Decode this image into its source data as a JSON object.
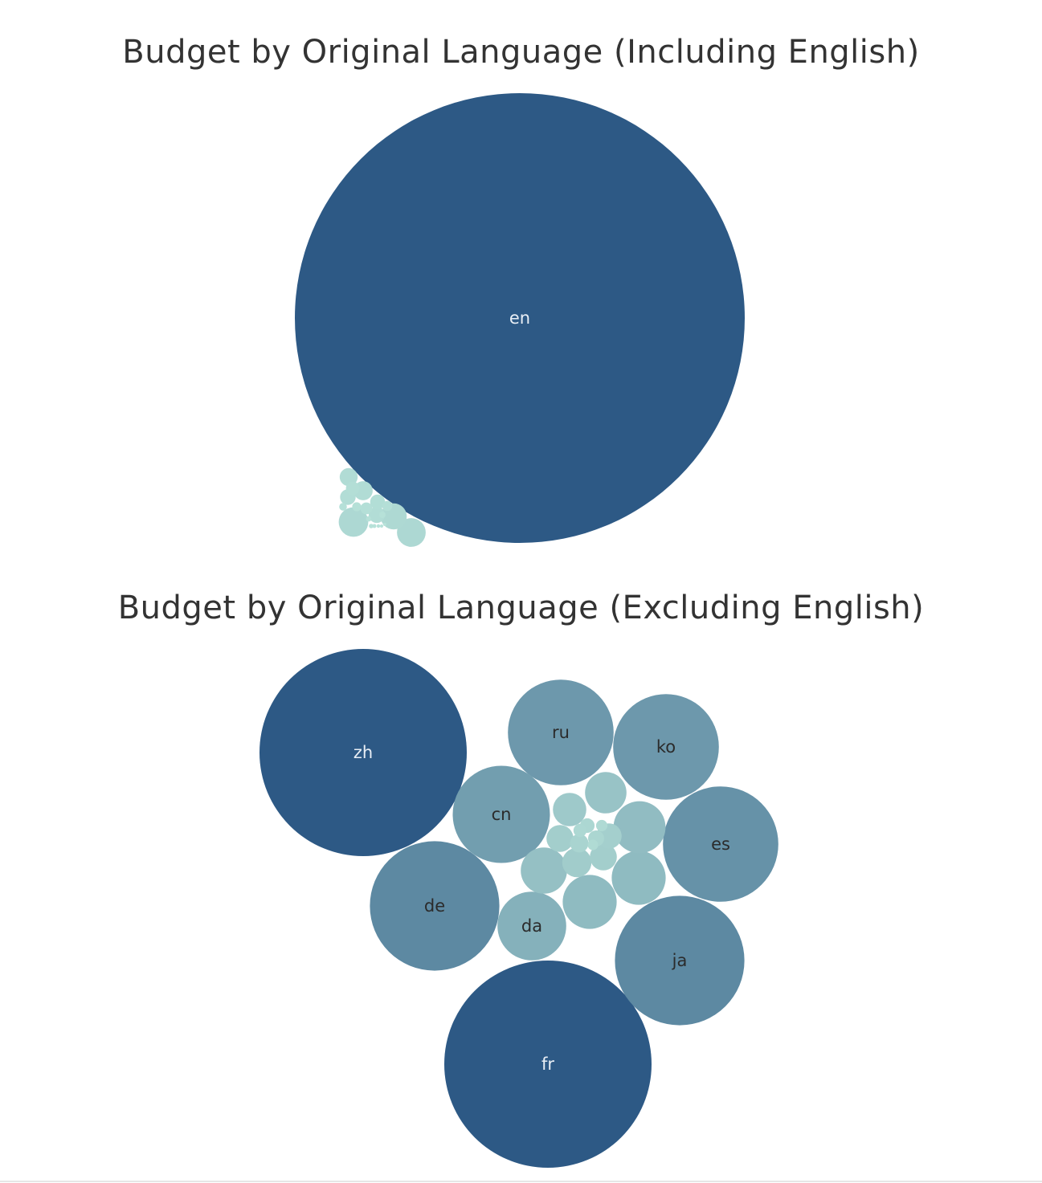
{
  "chart_data": [
    {
      "type": "bubble",
      "title": "Budget by Original Language (Including English)",
      "measure": "Budget",
      "dimension": "Original Language",
      "color_scale": [
        "#b9e4da",
        "#2d5985"
      ],
      "bubbles": [
        {
          "label": "en",
          "value": 1000,
          "shown_label": "en"
        },
        {
          "label": "",
          "value": 4.3
        },
        {
          "label": "",
          "value": 4.1
        },
        {
          "label": "",
          "value": 3.4
        },
        {
          "label": "",
          "value": 1.8
        },
        {
          "label": "",
          "value": 1.6
        },
        {
          "label": "",
          "value": 1.3
        },
        {
          "label": "",
          "value": 1.2
        },
        {
          "label": "",
          "value": 1.1
        },
        {
          "label": "",
          "value": 0.9
        },
        {
          "label": "",
          "value": 0.7
        },
        {
          "label": "",
          "value": 0.5
        },
        {
          "label": "",
          "value": 0.4
        },
        {
          "label": "",
          "value": 0.3
        },
        {
          "label": "",
          "value": 0.2
        },
        {
          "label": "",
          "value": 0.15
        },
        {
          "label": "",
          "value": 0.1
        },
        {
          "label": "",
          "value": 0.08
        },
        {
          "label": "",
          "value": 0.06
        },
        {
          "label": "",
          "value": 0.05
        },
        {
          "label": "",
          "value": 0.05
        }
      ]
    },
    {
      "type": "bubble",
      "title": "Budget by Original Language (Excluding English)",
      "measure": "Budget",
      "dimension": "Original Language",
      "color_scale": [
        "#b9e4da",
        "#2d5985"
      ],
      "bubbles": [
        {
          "label": "zh",
          "value": 100
        },
        {
          "label": "fr",
          "value": 100
        },
        {
          "label": "ja",
          "value": 39
        },
        {
          "label": "de",
          "value": 39
        },
        {
          "label": "es",
          "value": 31
        },
        {
          "label": "ko",
          "value": 26
        },
        {
          "label": "ru",
          "value": 26
        },
        {
          "label": "cn",
          "value": 22
        },
        {
          "label": "da",
          "value": 11
        },
        {
          "label": "",
          "value": 6.8
        },
        {
          "label": "",
          "value": 6.8
        },
        {
          "label": "",
          "value": 6.3
        },
        {
          "label": "",
          "value": 5.0
        },
        {
          "label": "",
          "value": 4.0
        },
        {
          "label": "",
          "value": 2.6
        },
        {
          "label": "",
          "value": 2.0
        },
        {
          "label": "",
          "value": 1.7
        },
        {
          "label": "",
          "value": 1.7
        },
        {
          "label": "",
          "value": 1.5
        },
        {
          "label": "",
          "value": 0.8
        },
        {
          "label": "",
          "value": 0.6
        },
        {
          "label": "",
          "value": 0.5
        },
        {
          "label": "",
          "value": 0.4
        },
        {
          "label": "",
          "value": 0.3
        },
        {
          "label": "",
          "value": 0.25
        }
      ]
    }
  ]
}
